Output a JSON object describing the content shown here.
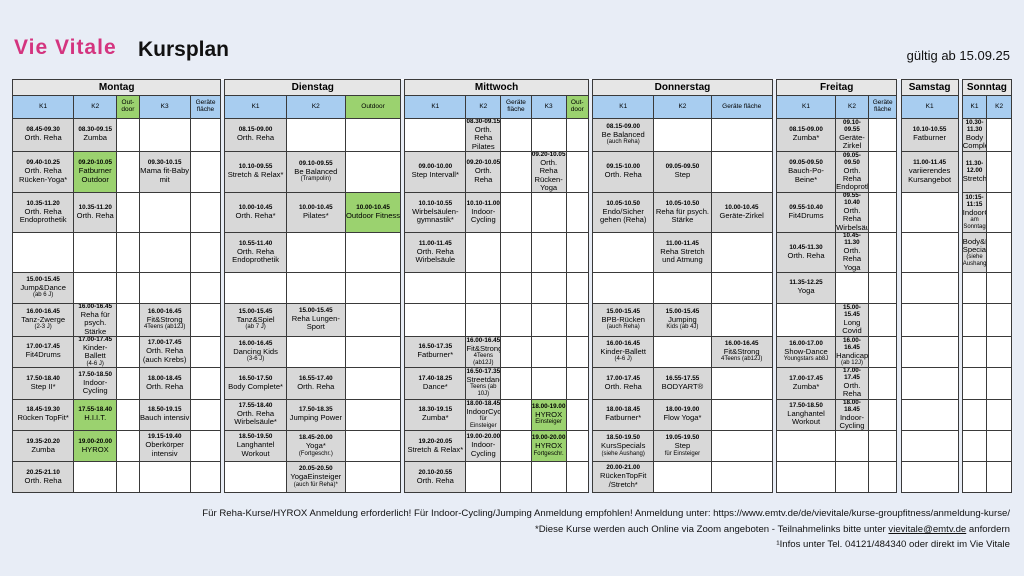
{
  "header": {
    "brand": "Vie Vitale",
    "title": "Kursplan",
    "valid": "gültig ab 15.09.25"
  },
  "days": [
    "Montag",
    "Dienstag",
    "Mittwoch",
    "Donnerstag",
    "Freitag",
    "Samstag",
    "Sonntag"
  ],
  "columns": [
    [
      "K1",
      "K2",
      "Out-door",
      "K3",
      "Geräte fläche"
    ],
    [
      "K1",
      "K2",
      "Outdoor"
    ],
    [
      "K1",
      "K2",
      "Geräte fläche",
      "K3",
      "Out-door"
    ],
    [
      "K1",
      "K2",
      "Geräte fläche"
    ],
    [
      "K1",
      "K2",
      "Geräte fläche"
    ],
    [
      "K1"
    ],
    [
      "K1",
      "K2"
    ]
  ],
  "rows": [
    [
      [
        "d",
        "08.45-09.30",
        "Orth. Reha",
        ""
      ],
      [
        "d",
        "08.30-09.15",
        "Zumba",
        ""
      ],
      [
        "w",
        "",
        "",
        ""
      ],
      [
        "w",
        "",
        "",
        ""
      ],
      [
        "w",
        "",
        "",
        ""
      ],
      [
        "d",
        "08.15-09.00",
        "Orth. Reha",
        ""
      ],
      [
        "w",
        "",
        "",
        ""
      ],
      [
        "w",
        "",
        "",
        ""
      ],
      [
        "w",
        "",
        "",
        ""
      ],
      [
        "d",
        "08.30-09.15",
        "Orth. Reha Pilates",
        ""
      ],
      [
        "w",
        "",
        "",
        ""
      ],
      [
        "w",
        "",
        "",
        ""
      ],
      [
        "w",
        "",
        "",
        ""
      ],
      [
        "d",
        "08.15-09.00",
        "Be Balanced",
        "(auch Reha)"
      ],
      [
        "w",
        "",
        "",
        ""
      ],
      [
        "w",
        "",
        "",
        ""
      ],
      [
        "d",
        "08.15-09.00",
        "Zumba*",
        ""
      ],
      [
        "d",
        "09.10-09.55",
        "Geräte-Zirkel",
        ""
      ],
      [
        "w",
        "",
        "",
        ""
      ],
      [
        "d",
        "10.10-10.55",
        "Fatburner",
        ""
      ],
      [
        "d",
        "10.30-11.30",
        "Body Complete",
        ""
      ],
      [
        "w",
        "",
        "",
        ""
      ]
    ],
    [
      [
        "d",
        "09.40-10.25",
        "Orth. Reha Rücken-Yoga*",
        ""
      ],
      [
        "g",
        "09.20-10.05",
        "Fatburner Outdoor",
        ""
      ],
      [
        "w",
        "",
        "",
        ""
      ],
      [
        "d",
        "09.30-10.15",
        "Mama fit-Baby mit",
        ""
      ],
      [
        "w",
        "",
        "",
        ""
      ],
      [
        "d",
        "10.10-09.55",
        "Stretch & Relax*",
        ""
      ],
      [
        "d",
        "09.10-09.55",
        "Be Balanced",
        "(Trampolin)"
      ],
      [
        "w",
        "",
        "",
        ""
      ],
      [
        "d",
        "09.00-10.00",
        "Step Intervall*",
        ""
      ],
      [
        "d",
        "09.20-10.05",
        "Orth. Reha",
        ""
      ],
      [
        "w",
        "",
        "",
        ""
      ],
      [
        "d",
        "09.20-10.05",
        "Orth. Reha Rücken-Yoga",
        ""
      ],
      [
        "w",
        "",
        "",
        ""
      ],
      [
        "d",
        "09.15-10.00",
        "Orth. Reha",
        ""
      ],
      [
        "d",
        "09.05-09.50",
        "Step",
        ""
      ],
      [
        "w",
        "",
        "",
        ""
      ],
      [
        "d",
        "09.05-09.50",
        "Bauch-Po-Beine*",
        ""
      ],
      [
        "d",
        "09.05-09.50",
        "Orth. Reha Endoprothetik",
        ""
      ],
      [
        "w",
        "",
        "",
        ""
      ],
      [
        "d",
        "11.00-11.45",
        "variierendes Kursangebot",
        ""
      ],
      [
        "d",
        "11.30-12.00",
        "Stretch",
        ""
      ],
      [
        "w",
        "",
        "",
        ""
      ]
    ],
    [
      [
        "d",
        "10.35-11.20",
        "Orth. Reha Endoprothetik",
        ""
      ],
      [
        "d",
        "10.35-11.20",
        "Orth. Reha",
        ""
      ],
      [
        "w",
        "",
        "",
        ""
      ],
      [
        "w",
        "",
        "",
        ""
      ],
      [
        "w",
        "",
        "",
        ""
      ],
      [
        "d",
        "10.00-10.45",
        "Orth. Reha*",
        ""
      ],
      [
        "d",
        "10.00-10.45",
        "Pilates*",
        ""
      ],
      [
        "g",
        "10.00-10.45",
        "Outdoor Fitness",
        ""
      ],
      [
        "d",
        "10.10-10.55",
        "Wirbelsäulen-gymnastik*",
        ""
      ],
      [
        "d",
        "10.10-11.00",
        "Indoor-Cycling",
        ""
      ],
      [
        "w",
        "",
        "",
        ""
      ],
      [
        "w",
        "",
        "",
        ""
      ],
      [
        "w",
        "",
        "",
        ""
      ],
      [
        "d",
        "10.05-10.50",
        "Endo/Sicher gehen (Reha)",
        ""
      ],
      [
        "d",
        "10.05-10.50",
        "Reha für psych. Stärke",
        ""
      ],
      [
        "d",
        "10.00-10.45",
        "Geräte-Zirkel",
        ""
      ],
      [
        "d",
        "09.55-10.40",
        "Fit4Drums",
        ""
      ],
      [
        "d",
        "09.55-10.40",
        "Orth. Reha Wirbelsäule",
        ""
      ],
      [
        "w",
        "",
        "",
        ""
      ],
      [
        "w",
        "",
        "",
        ""
      ],
      [
        "d",
        "10:15-11:15",
        "IndoorCycling",
        "am Sonntag"
      ],
      [
        "w",
        "",
        "",
        ""
      ]
    ],
    [
      [
        "w",
        "",
        "",
        ""
      ],
      [
        "w",
        "",
        "",
        ""
      ],
      [
        "w",
        "",
        "",
        ""
      ],
      [
        "w",
        "",
        "",
        ""
      ],
      [
        "w",
        "",
        "",
        ""
      ],
      [
        "d",
        "10.55-11.40",
        "Orth. Reha Endoprothetik",
        ""
      ],
      [
        "w",
        "",
        "",
        ""
      ],
      [
        "w",
        "",
        "",
        ""
      ],
      [
        "d",
        "11.00-11.45",
        "Orth. Reha Wirbelsäule",
        ""
      ],
      [
        "w",
        "",
        "",
        ""
      ],
      [
        "w",
        "",
        "",
        ""
      ],
      [
        "w",
        "",
        "",
        ""
      ],
      [
        "w",
        "",
        "",
        ""
      ],
      [
        "w",
        "",
        "",
        ""
      ],
      [
        "d",
        "11.00-11.45",
        "Reha Stretch und Atmung",
        ""
      ],
      [
        "w",
        "",
        "",
        ""
      ],
      [
        "d",
        "10.45-11.30",
        "Orth. Reha",
        ""
      ],
      [
        "d",
        "10.45-11.30",
        "Orth. Reha Yoga",
        ""
      ],
      [
        "w",
        "",
        "",
        ""
      ],
      [
        "w",
        "",
        "",
        ""
      ],
      [
        "d",
        "",
        "Body&Mind Specials",
        "(siehe Aushang)"
      ],
      [
        "w",
        "",
        "",
        ""
      ]
    ],
    [
      [
        "d",
        "15.00-15.45",
        "Jump&Dance",
        "(ab 6 J)"
      ],
      [
        "w",
        "",
        "",
        ""
      ],
      [
        "w",
        "",
        "",
        ""
      ],
      [
        "w",
        "",
        "",
        ""
      ],
      [
        "w",
        "",
        "",
        ""
      ],
      [
        "w",
        "",
        "",
        ""
      ],
      [
        "w",
        "",
        "",
        ""
      ],
      [
        "w",
        "",
        "",
        ""
      ],
      [
        "w",
        "",
        "",
        ""
      ],
      [
        "w",
        "",
        "",
        ""
      ],
      [
        "w",
        "",
        "",
        ""
      ],
      [
        "w",
        "",
        "",
        ""
      ],
      [
        "w",
        "",
        "",
        ""
      ],
      [
        "w",
        "",
        "",
        ""
      ],
      [
        "w",
        "",
        "",
        ""
      ],
      [
        "w",
        "",
        "",
        ""
      ],
      [
        "d",
        "11.35-12.25",
        "Yoga",
        ""
      ],
      [
        "w",
        "",
        "",
        ""
      ],
      [
        "w",
        "",
        "",
        ""
      ],
      [
        "w",
        "",
        "",
        ""
      ],
      [
        "w",
        "",
        "",
        ""
      ],
      [
        "w",
        "",
        "",
        ""
      ]
    ],
    [
      [
        "d",
        "16.00-16.45",
        "Tanz-Zwerge",
        "(2-3 J)"
      ],
      [
        "d",
        "16.00-16.45",
        "Reha für psych. Stärke",
        ""
      ],
      [
        "w",
        "",
        "",
        ""
      ],
      [
        "d",
        "16.00-16.45",
        "Fit&Strong",
        "4Teens (ab12J)"
      ],
      [
        "w",
        "",
        "",
        ""
      ],
      [
        "d",
        "15.00-15.45",
        "Tanz&Spiel",
        "(ab 7 J)"
      ],
      [
        "d",
        "15.00-15.45",
        "Reha Lungen-Sport",
        ""
      ],
      [
        "w",
        "",
        "",
        ""
      ],
      [
        "w",
        "",
        "",
        ""
      ],
      [
        "w",
        "",
        "",
        ""
      ],
      [
        "w",
        "",
        "",
        ""
      ],
      [
        "w",
        "",
        "",
        ""
      ],
      [
        "w",
        "",
        "",
        ""
      ],
      [
        "d",
        "15.00-15.45",
        "BPB-Rücken",
        "(auch Reha)"
      ],
      [
        "d",
        "15.00-15.45",
        "Jumping",
        "Kids (ab 4J)"
      ],
      [
        "w",
        "",
        "",
        ""
      ],
      [
        "w",
        "",
        "",
        ""
      ],
      [
        "d",
        "15.00-15.45",
        "Long Covid",
        ""
      ],
      [
        "w",
        "",
        "",
        ""
      ],
      [
        "w",
        "",
        "",
        ""
      ],
      [
        "w",
        "",
        "",
        ""
      ],
      [
        "w",
        "",
        "",
        ""
      ]
    ],
    [
      [
        "d",
        "17.00-17.45",
        "Fit4Drums",
        ""
      ],
      [
        "d",
        "17.00-17.45",
        "Kinder-Ballett",
        "(4-6 J)"
      ],
      [
        "w",
        "",
        "",
        ""
      ],
      [
        "d",
        "17.00-17.45",
        "Orth. Reha (auch Krebs)",
        ""
      ],
      [
        "w",
        "",
        "",
        ""
      ],
      [
        "d",
        "16.00-16.45",
        "Dancing Kids",
        "(3-6 J)"
      ],
      [
        "w",
        "",
        "",
        ""
      ],
      [
        "w",
        "",
        "",
        ""
      ],
      [
        "d",
        "16.50-17.35",
        "Fatburner*",
        ""
      ],
      [
        "d",
        "16.00-16.45",
        "Fit&Strong",
        "4Teens (ab12J)"
      ],
      [
        "w",
        "",
        "",
        ""
      ],
      [
        "w",
        "",
        "",
        ""
      ],
      [
        "w",
        "",
        "",
        ""
      ],
      [
        "d",
        "16.00-16.45",
        "Kinder-Ballett",
        "(4-6 J)"
      ],
      [
        "w",
        "",
        "",
        ""
      ],
      [
        "d",
        "16.00-16.45",
        "Fit&Strong",
        "4Teens (ab12J)"
      ],
      [
        "d",
        "16.00-17.00",
        "Show-Dance",
        "Youngstars ab8J"
      ],
      [
        "d",
        "16.00-16.45",
        "Handicaps",
        "(ab 12J)"
      ],
      [
        "w",
        "",
        "",
        ""
      ],
      [
        "w",
        "",
        "",
        ""
      ],
      [
        "w",
        "",
        "",
        ""
      ],
      [
        "w",
        "",
        "",
        ""
      ]
    ],
    [
      [
        "d",
        "17.50-18.40",
        "Step II*",
        ""
      ],
      [
        "d",
        "17.50-18.50",
        "Indoor-Cycling",
        ""
      ],
      [
        "w",
        "",
        "",
        ""
      ],
      [
        "d",
        "18.00-18.45",
        "Orth. Reha",
        ""
      ],
      [
        "w",
        "",
        "",
        ""
      ],
      [
        "d",
        "16.50-17.50",
        "Body Complete*",
        ""
      ],
      [
        "d",
        "16.55-17.40",
        "Orth. Reha",
        ""
      ],
      [
        "w",
        "",
        "",
        ""
      ],
      [
        "d",
        "17.40-18.25",
        "Dance*",
        ""
      ],
      [
        "d",
        "16.50-17.35",
        "Streetdance",
        "Teens (ab 10J)"
      ],
      [
        "w",
        "",
        "",
        ""
      ],
      [
        "w",
        "",
        "",
        ""
      ],
      [
        "w",
        "",
        "",
        ""
      ],
      [
        "d",
        "17.00-17.45",
        "Orth. Reha",
        ""
      ],
      [
        "d",
        "16.55-17.55",
        "BODYART®",
        ""
      ],
      [
        "w",
        "",
        "",
        ""
      ],
      [
        "d",
        "17.00-17.45",
        "Zumba*",
        ""
      ],
      [
        "d",
        "17.00-17.45",
        "Orth. Reha",
        ""
      ],
      [
        "w",
        "",
        "",
        ""
      ],
      [
        "w",
        "",
        "",
        ""
      ],
      [
        "w",
        "",
        "",
        ""
      ],
      [
        "w",
        "",
        "",
        ""
      ]
    ],
    [
      [
        "d",
        "18.45-19.30",
        "Rücken TopFit*",
        ""
      ],
      [
        "g",
        "17.55-18.40",
        "H.I.I.T.",
        ""
      ],
      [
        "w",
        "",
        "",
        ""
      ],
      [
        "d",
        "18.50-19.15",
        "Bauch intensiv",
        ""
      ],
      [
        "w",
        "",
        "",
        ""
      ],
      [
        "d",
        "17.55-18.40",
        "Orth. Reha Wirbelsäule*",
        ""
      ],
      [
        "d",
        "17.50-18.35",
        "Jumping Power",
        ""
      ],
      [
        "w",
        "",
        "",
        ""
      ],
      [
        "d",
        "18.30-19.15",
        "Zumba*",
        ""
      ],
      [
        "d",
        "18.00-18.45",
        "IndoorCycling",
        "für Einsteiger"
      ],
      [
        "w",
        "",
        "",
        ""
      ],
      [
        "g",
        "18.00-19.00",
        "HYROX",
        "Einsteiger"
      ],
      [
        "w",
        "",
        "",
        ""
      ],
      [
        "d",
        "18.00-18.45",
        "Fatburner*",
        ""
      ],
      [
        "d",
        "18.00-19.00",
        "Flow Yoga*",
        ""
      ],
      [
        "w",
        "",
        "",
        ""
      ],
      [
        "d",
        "17.50-18.50",
        "Langhantel Workout",
        ""
      ],
      [
        "d",
        "18.00-18.45",
        "Indoor-Cycling",
        ""
      ],
      [
        "w",
        "",
        "",
        ""
      ],
      [
        "w",
        "",
        "",
        ""
      ],
      [
        "w",
        "",
        "",
        ""
      ],
      [
        "w",
        "",
        "",
        ""
      ]
    ],
    [
      [
        "d",
        "19.35-20.20",
        "Zumba",
        ""
      ],
      [
        "g",
        "19.00-20.00",
        "HYROX",
        ""
      ],
      [
        "w",
        "",
        "",
        ""
      ],
      [
        "d",
        "19.15-19.40",
        "Oberkörper intensiv",
        ""
      ],
      [
        "w",
        "",
        "",
        ""
      ],
      [
        "d",
        "18.50-19.50",
        "Langhantel Workout",
        ""
      ],
      [
        "d",
        "18.45-20.00",
        "Yoga*",
        "(Fortgeschr.)"
      ],
      [
        "w",
        "",
        "",
        ""
      ],
      [
        "d",
        "19.20-20.05",
        "Stretch & Relax*",
        ""
      ],
      [
        "d",
        "19.00-20.00",
        "Indoor-Cycling",
        ""
      ],
      [
        "w",
        "",
        "",
        ""
      ],
      [
        "g",
        "19.00-20.00",
        "HYROX",
        "Fortgeschr."
      ],
      [
        "w",
        "",
        "",
        ""
      ],
      [
        "d",
        "18.50-19.50",
        "KursSpecials",
        "(siehe Aushang)"
      ],
      [
        "d",
        "19.05-19.50",
        "Step",
        "für Einsteiger"
      ],
      [
        "w",
        "",
        "",
        ""
      ],
      [
        "w",
        "",
        "",
        ""
      ],
      [
        "w",
        "",
        "",
        ""
      ],
      [
        "w",
        "",
        "",
        ""
      ],
      [
        "w",
        "",
        "",
        ""
      ],
      [
        "w",
        "",
        "",
        ""
      ],
      [
        "w",
        "",
        "",
        ""
      ]
    ],
    [
      [
        "d",
        "20.25-21.10",
        "Orth. Reha",
        ""
      ],
      [
        "w",
        "",
        "",
        ""
      ],
      [
        "w",
        "",
        "",
        ""
      ],
      [
        "w",
        "",
        "",
        ""
      ],
      [
        "w",
        "",
        "",
        ""
      ],
      [
        "w",
        "",
        "",
        ""
      ],
      [
        "d",
        "20.05-20.50",
        "YogaEinsteiger",
        "(auch für Reha)*"
      ],
      [
        "w",
        "",
        "",
        ""
      ],
      [
        "d",
        "20.10-20.55",
        "Orth. Reha",
        ""
      ],
      [
        "w",
        "",
        "",
        ""
      ],
      [
        "w",
        "",
        "",
        ""
      ],
      [
        "w",
        "",
        "",
        ""
      ],
      [
        "w",
        "",
        "",
        ""
      ],
      [
        "d",
        "20.00-21.00",
        "RückenTopFit /Stretch*",
        ""
      ],
      [
        "w",
        "",
        "",
        ""
      ],
      [
        "w",
        "",
        "",
        ""
      ],
      [
        "w",
        "",
        "",
        ""
      ],
      [
        "w",
        "",
        "",
        ""
      ],
      [
        "w",
        "",
        "",
        ""
      ],
      [
        "w",
        "",
        "",
        ""
      ],
      [
        "w",
        "",
        "",
        ""
      ],
      [
        "w",
        "",
        "",
        ""
      ]
    ]
  ],
  "footer": {
    "line1": "Für Reha-Kurse/HYROX Anmeldung erforderlich! Für Indoor-Cycling/Jumping Anmeldung empfohlen! Anmeldung unter: https://www.emtv.de/de/vievitale/kurse-groupfitness/anmeldung-kurse/",
    "line2": "*Diese Kurse werden auch Online via Zoom angeboten - Teilnahmelinks bitte unter",
    "email": "vievitale@emtv.de",
    "line2b": "anfordern",
    "line3": "¹Infos unter Tel. 04121/484340 oder direkt im Vie Vitale"
  },
  "colors": {
    "brand": "#d4347f",
    "blue": "#a8cdf0",
    "green": "#9bd26f",
    "grey": "#d8d8d8"
  }
}
